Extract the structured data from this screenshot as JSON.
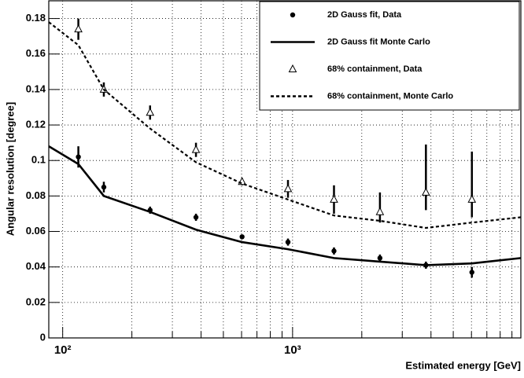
{
  "chart_data": {
    "type": "scatter",
    "ylabel": "Angular resolution [degree]",
    "xlabel": "Estimated energy [GeV]",
    "log_x": true,
    "grid": true,
    "xlim": [
      87,
      9840
    ],
    "ylim": [
      0,
      0.19
    ],
    "xticks": [
      {
        "value": 100,
        "label": "10²"
      },
      {
        "value": 1000,
        "label": "10³"
      }
    ],
    "xminorticks": [
      200,
      300,
      400,
      500,
      600,
      700,
      800,
      900,
      2000,
      3000,
      4000,
      5000,
      6000,
      7000,
      8000,
      9000
    ],
    "yticks": [
      0,
      0.02,
      0.04,
      0.06,
      0.08,
      0.1,
      0.12,
      0.14,
      0.16,
      0.18
    ],
    "legend": "upper right",
    "series": [
      {
        "name": "2D Gauss fit, Data",
        "color": "#000000",
        "marker": "circle",
        "x": [
          117,
          151,
          240,
          380,
          603,
          955,
          1514,
          2399,
          3802,
          6026
        ],
        "values": [
          0.102,
          0.085,
          0.072,
          0.068,
          0.057,
          0.054,
          0.049,
          0.045,
          0.041,
          0.037
        ],
        "errors_low": [
          0.006,
          0.003,
          0.002,
          0.002,
          0.001,
          0.002,
          0.002,
          0.002,
          0.002,
          0.003
        ],
        "errors_high": [
          0.006,
          0.003,
          0.002,
          0.002,
          0.001,
          0.002,
          0.002,
          0.002,
          0.002,
          0.003
        ]
      },
      {
        "name": "2D Gauss fit Monte Carlo",
        "color": "#000000",
        "style": "solid",
        "x": [
          87,
          117,
          151,
          240,
          380,
          603,
          955,
          1514,
          2399,
          3802,
          6026,
          9840
        ],
        "values": [
          0.108,
          0.098,
          0.08,
          0.071,
          0.061,
          0.054,
          0.05,
          0.045,
          0.043,
          0.041,
          0.042,
          0.045
        ]
      },
      {
        "name": "68% containment, Data",
        "color": "#000000",
        "marker": "triangle",
        "x": [
          117,
          151,
          240,
          380,
          603,
          955,
          1514,
          2399,
          3802,
          6026
        ],
        "values": [
          0.174,
          0.14,
          0.127,
          0.106,
          0.088,
          0.084,
          0.078,
          0.071,
          0.082,
          0.078
        ],
        "errors_low": [
          0.006,
          0.004,
          0.004,
          0.004,
          0.002,
          0.005,
          0.008,
          0.006,
          0.01,
          0.01
        ],
        "errors_high": [
          0.006,
          0.004,
          0.004,
          0.004,
          0.002,
          0.005,
          0.008,
          0.011,
          0.027,
          0.027
        ]
      },
      {
        "name": "68% containment, Monte Carlo",
        "color": "#000000",
        "style": "dashed",
        "x": [
          87,
          117,
          151,
          240,
          380,
          603,
          955,
          1514,
          2399,
          3802,
          6026,
          9840
        ],
        "values": [
          0.178,
          0.165,
          0.14,
          0.118,
          0.099,
          0.087,
          0.078,
          0.069,
          0.066,
          0.062,
          0.065,
          0.068
        ]
      }
    ]
  }
}
